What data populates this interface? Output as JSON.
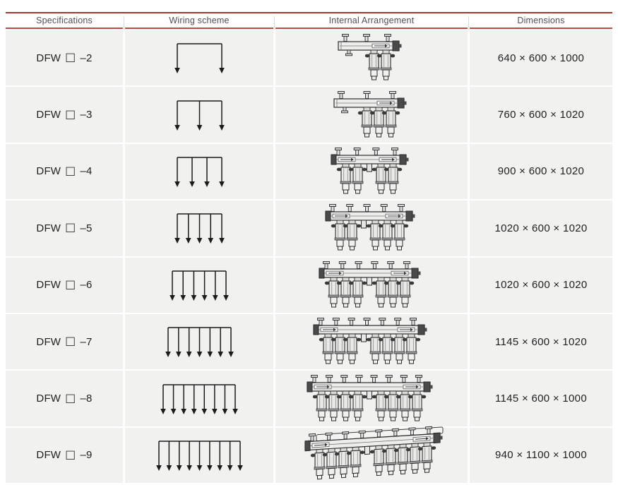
{
  "colors": {
    "top_rule_red": "#a8392f",
    "header_underline_red": "#c04b42",
    "row_background": "#f1f1ef",
    "body_text": "#1f1f1f",
    "header_text": "#4f4f4f",
    "diagram_stroke": "#1b1b1b"
  },
  "table": {
    "headers": [
      {
        "label": "Specifications"
      },
      {
        "label": "Wiring scheme"
      },
      {
        "label": "Internal Arrangement"
      },
      {
        "label": "Dimensions"
      }
    ],
    "rows": [
      {
        "model": "DFW",
        "box_symbol": "□",
        "variant": "–2",
        "circuits": 2,
        "dimensions": "640 × 600 × 1000",
        "view": "front"
      },
      {
        "model": "DFW",
        "box_symbol": "□",
        "variant": "–3",
        "circuits": 3,
        "dimensions": "760 × 600 × 1020",
        "view": "front"
      },
      {
        "model": "DFW",
        "box_symbol": "□",
        "variant": "–4",
        "circuits": 4,
        "dimensions": "900 × 600 × 1020",
        "view": "front"
      },
      {
        "model": "DFW",
        "box_symbol": "□",
        "variant": "–5",
        "circuits": 5,
        "dimensions": "1020 × 600 × 1020",
        "view": "front"
      },
      {
        "model": "DFW",
        "box_symbol": "□",
        "variant": "–6",
        "circuits": 6,
        "dimensions": "1020 × 600 × 1020",
        "view": "front"
      },
      {
        "model": "DFW",
        "box_symbol": "□",
        "variant": "–7",
        "circuits": 7,
        "dimensions": "1145 × 600 × 1020",
        "view": "front"
      },
      {
        "model": "DFW",
        "box_symbol": "□",
        "variant": "–8",
        "circuits": 8,
        "dimensions": "1145 × 600 × 1000",
        "view": "front"
      },
      {
        "model": "DFW",
        "box_symbol": "□",
        "variant": "–9",
        "circuits": 9,
        "dimensions": "940 × 1100 × 1000",
        "view": "isometric"
      }
    ]
  }
}
